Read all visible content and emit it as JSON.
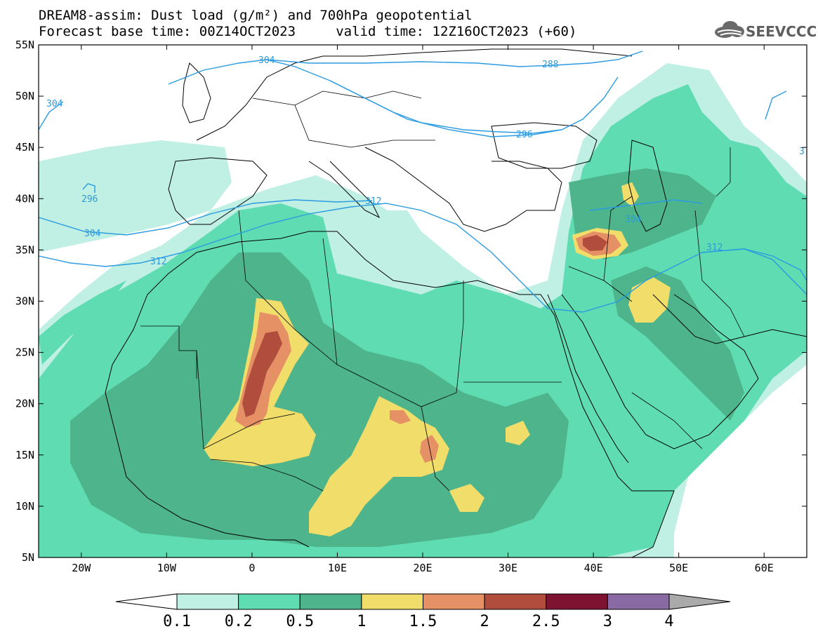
{
  "title": {
    "line1": "DREAM8-assim: Dust load (g/m²) and 700hPa geopotential",
    "line2": "Forecast base time: 00Z14OCT2023     valid time: 12Z16OCT2023 (+60)"
  },
  "logo": {
    "text": "SEEVCCC",
    "icon": "cloud-icon"
  },
  "axes": {
    "lon_labels": [
      "20W",
      "10W",
      "0",
      "10E",
      "20E",
      "30E",
      "40E",
      "50E",
      "60E"
    ],
    "lon_values": [
      -20,
      -10,
      0,
      10,
      20,
      30,
      40,
      50,
      60
    ],
    "lat_labels": [
      "55N",
      "50N",
      "45N",
      "40N",
      "35N",
      "30N",
      "25N",
      "20N",
      "15N",
      "10N",
      "5N"
    ],
    "lat_values": [
      55,
      50,
      45,
      40,
      35,
      30,
      25,
      20,
      15,
      10,
      5
    ],
    "lon_range": [
      -25,
      65
    ],
    "lat_range": [
      5,
      55
    ]
  },
  "contours": {
    "labels": [
      "304",
      "304",
      "288",
      "296",
      "296",
      "312",
      "304",
      "312",
      "304",
      "312",
      "3"
    ],
    "color": "#2a9be0"
  },
  "colorbar": {
    "labels": [
      "0.1",
      "0.2",
      "0.5",
      "1",
      "1.5",
      "2",
      "2.5",
      "3",
      "4"
    ],
    "colors": [
      "#c0efe3",
      "#5fdcb2",
      "#4db48c",
      "#f1de6a",
      "#e69066",
      "#b04d3d",
      "#7e1331",
      "#8a6aa2"
    ],
    "under_color": "#ffffff",
    "over_color": "#aaaaaa"
  },
  "dust_level_colors": {
    "light": "#c0efe3",
    "medium": "#5fdcb2",
    "dark": "#4db48c",
    "yellow": "#f1de6a",
    "orange": "#e69066",
    "red": "#b04d3d"
  }
}
